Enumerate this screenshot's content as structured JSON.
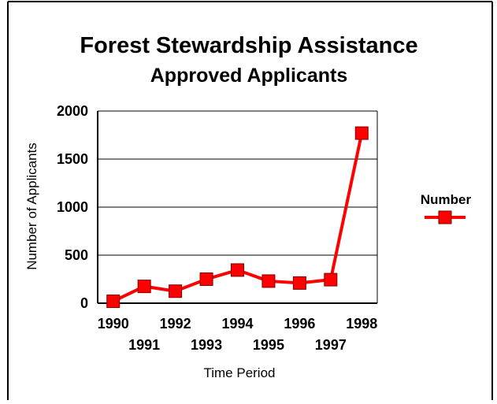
{
  "chart_data": {
    "type": "line",
    "title": "Forest Stewardship Assistance",
    "subtitle": "Approved Applicants",
    "xlabel": "Time Period",
    "ylabel": "Number of Applicants",
    "categories": [
      "1990",
      "1991",
      "1992",
      "1993",
      "1994",
      "1995",
      "1996",
      "1997",
      "1998"
    ],
    "series": [
      {
        "name": "Number",
        "values": [
          20,
          175,
          125,
          250,
          345,
          230,
          210,
          245,
          1770
        ]
      }
    ],
    "ylim": [
      0,
      2000
    ],
    "yticks": [
      "0",
      "500",
      "1000",
      "1500",
      "2000"
    ],
    "grid": true,
    "legend_position": "right",
    "colors": {
      "series": "#ff0000",
      "marker_edge": "#800000",
      "grid": "#000000",
      "border": "#000000"
    }
  }
}
